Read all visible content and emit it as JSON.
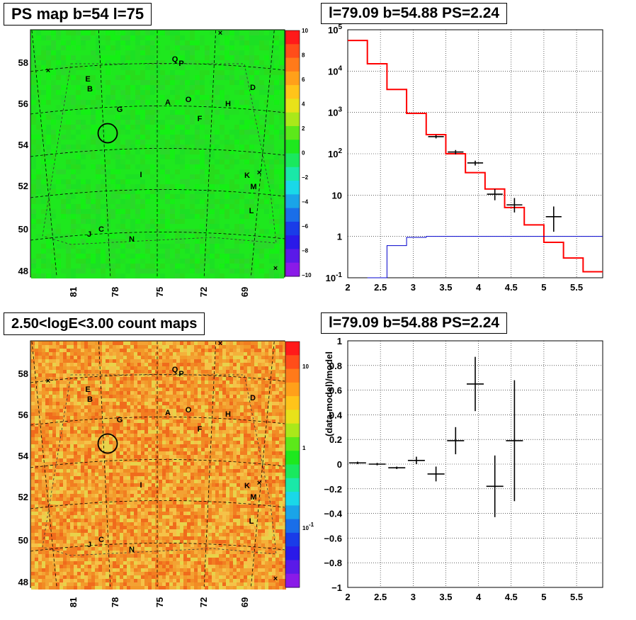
{
  "titles": {
    "map_top": "PS map b=54 l=75",
    "spec_top": "l=79.09 b=54.88 PS=2.24",
    "map_bottom": "2.50<logE<3.00 count maps",
    "resid_bottom": "l=79.09 b=54.88 PS=2.24"
  },
  "colors": {
    "data": "#000000",
    "model": "#ff0000",
    "background_model": "#0000cc",
    "ts_map_base": "#1ee81e"
  },
  "maps": {
    "x_ticks": [
      "81",
      "78",
      "75",
      "72",
      "69"
    ],
    "y_ticks": [
      "58",
      "56",
      "54",
      "52",
      "50",
      "48"
    ],
    "ts_colorbar": [
      "10",
      "8",
      "6",
      "4",
      "2",
      "0",
      "−2",
      "−4",
      "−6",
      "−8",
      "−10"
    ],
    "count_colorbar": [
      "10",
      "1",
      "10"
    ],
    "count_colorbar_exp": "-1",
    "count_colorbar_exp_tick": 2,
    "sources": [
      "Q",
      "P",
      "E",
      "B",
      "A",
      "O",
      "H",
      "D",
      "G",
      "F",
      "I",
      "K",
      "M",
      "L",
      "J",
      "C",
      "N"
    ]
  },
  "chart_data": [
    {
      "type": "line",
      "title": "l=79.09 b=54.88 PS=2.24",
      "xlabel": "",
      "ylabel": "",
      "xlim": [
        2.0,
        5.9
      ],
      "ylim": [
        0.1,
        100000
      ],
      "yscale": "log",
      "grid": true,
      "x_ticks": [
        "2",
        "2.5",
        "3",
        "3.5",
        "4",
        "4.5",
        "5",
        "5.5"
      ],
      "y_ticks": [
        {
          "base": "10",
          "exp": "-1"
        },
        {
          "base": "1",
          "exp": ""
        },
        {
          "base": "10",
          "exp": ""
        },
        {
          "base": "10",
          "exp": "2"
        },
        {
          "base": "10",
          "exp": "3"
        },
        {
          "base": "10",
          "exp": "4"
        },
        {
          "base": "10",
          "exp": "5"
        }
      ],
      "series": [
        {
          "style": "step",
          "color": "#ff0000",
          "edges": [
            2.0,
            2.3,
            2.6,
            2.9,
            3.2,
            3.5,
            3.8,
            4.1,
            4.4,
            4.7,
            5.0,
            5.3,
            5.6,
            5.9
          ],
          "values": [
            55000,
            15000,
            3600,
            950,
            290,
            100,
            35,
            14,
            5.0,
            1.9,
            0.72,
            0.3,
            0.14
          ]
        },
        {
          "style": "step",
          "color": "#0000cc",
          "edges": [
            2.3,
            2.6,
            2.9,
            3.2,
            5.9
          ],
          "values": [
            0.1,
            0.6,
            0.95,
            1.0
          ]
        },
        {
          "style": "errorbar",
          "color": "#000000",
          "x": [
            3.35,
            3.65,
            3.95,
            4.25,
            4.55,
            5.15
          ],
          "y": [
            260,
            110,
            60,
            10.5,
            5.8,
            3.0
          ],
          "xerr": 0.12,
          "ylo": [
            235,
            97,
            52,
            7.5,
            3.8,
            1.3
          ],
          "yhi": [
            285,
            123,
            68,
            14,
            8.5,
            5.3
          ]
        }
      ]
    },
    {
      "type": "scatter",
      "title": "l=79.09 b=54.88 PS=2.24",
      "ylabel": "(data-model)/model",
      "xlim": [
        2.0,
        5.9
      ],
      "ylim": [
        -1,
        1
      ],
      "grid": true,
      "x_ticks": [
        "2",
        "2.5",
        "3",
        "3.5",
        "4",
        "4.5",
        "5",
        "5.5"
      ],
      "y_ticks": [
        "−1",
        "−0.8",
        "−0.6",
        "−0.4",
        "−0.2",
        "0",
        "0.2",
        "0.4",
        "0.6",
        "0.8",
        "1"
      ],
      "series": [
        {
          "style": "errorbar",
          "color": "#000000",
          "x": [
            2.15,
            2.45,
            2.75,
            3.05,
            3.35,
            3.65,
            3.95,
            4.25,
            4.55
          ],
          "y": [
            0.01,
            0.0,
            -0.03,
            0.03,
            -0.08,
            0.19,
            0.65,
            -0.18,
            0.19
          ],
          "xerr": 0.13,
          "yerr": [
            0.01,
            0.01,
            0.01,
            0.03,
            0.06,
            0.11,
            0.22,
            0.25,
            0.49
          ]
        }
      ]
    }
  ]
}
